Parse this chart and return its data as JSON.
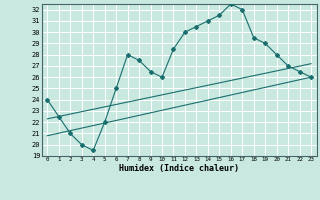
{
  "xlabel": "Humidex (Indice chaleur)",
  "ylabel": "",
  "bg_color": "#c8e8e0",
  "grid_color": "#b0d8d0",
  "line_color": "#1a6e6e",
  "xlim": [
    -0.5,
    23.5
  ],
  "ylim": [
    19,
    32.5
  ],
  "xticks": [
    0,
    1,
    2,
    3,
    4,
    5,
    6,
    7,
    8,
    9,
    10,
    11,
    12,
    13,
    14,
    15,
    16,
    17,
    18,
    19,
    20,
    21,
    22,
    23
  ],
  "yticks": [
    19,
    20,
    21,
    22,
    23,
    24,
    25,
    26,
    27,
    28,
    29,
    30,
    31,
    32
  ],
  "main_line_x": [
    0,
    1,
    2,
    3,
    4,
    5,
    6,
    7,
    8,
    9,
    10,
    11,
    12,
    13,
    14,
    15,
    16,
    17,
    18,
    19,
    20,
    21,
    22,
    23
  ],
  "main_line_y": [
    24,
    22.5,
    21,
    20,
    19.5,
    22,
    25,
    28,
    27.5,
    26.5,
    26,
    28.5,
    30,
    30.5,
    31,
    31.5,
    32.5,
    32,
    29.5,
    29,
    28,
    27,
    26.5,
    26
  ],
  "line2_x": [
    0,
    23
  ],
  "line2_y": [
    20.8,
    26.0
  ],
  "line3_x": [
    0,
    23
  ],
  "line3_y": [
    22.3,
    27.2
  ]
}
